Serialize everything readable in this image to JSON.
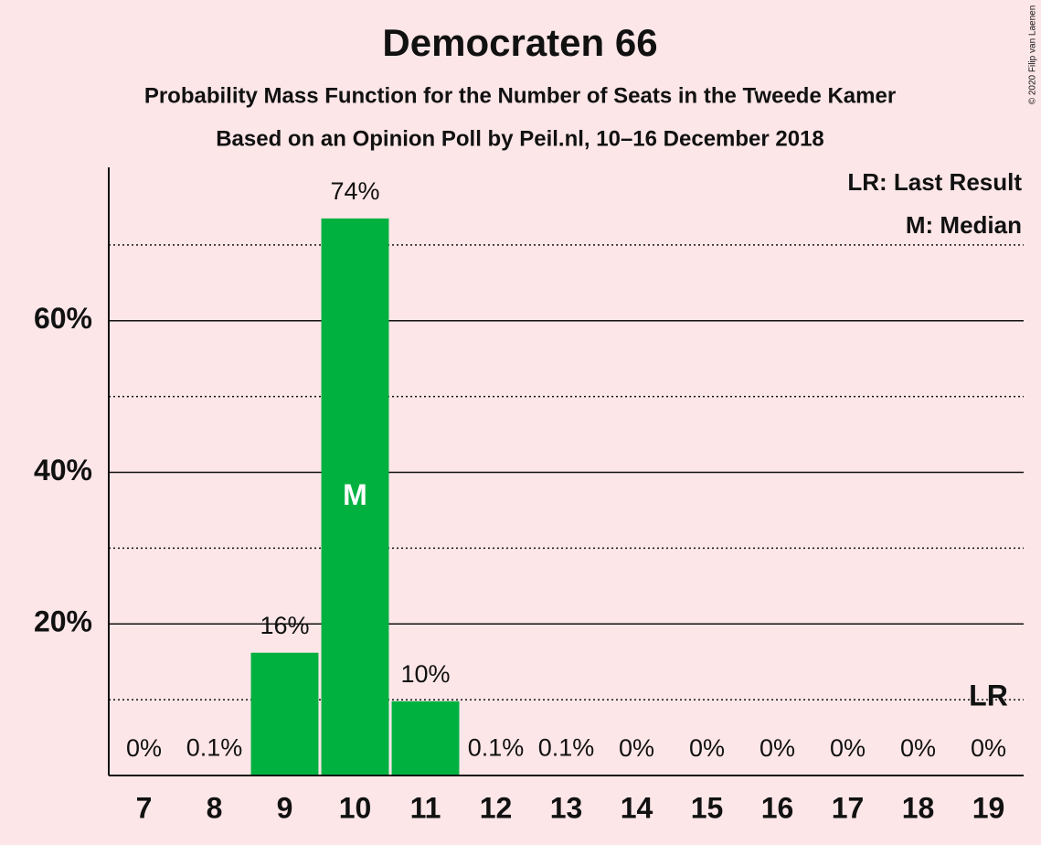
{
  "chart_data": {
    "type": "bar",
    "title": "Democraten 66",
    "subtitle": "Probability Mass Function for the Number of Seats in the Tweede Kamer",
    "subtitle2": "Based on an Opinion Poll by Peil.nl, 10–16 December 2018",
    "copyright": "© 2020 Filip van Laenen",
    "categories": [
      7,
      8,
      9,
      10,
      11,
      12,
      13,
      14,
      15,
      16,
      17,
      18,
      19
    ],
    "values": [
      0,
      0.1,
      16.2,
      73.5,
      9.8,
      0.1,
      0.1,
      0,
      0,
      0,
      0,
      0,
      0
    ],
    "value_labels": [
      "0%",
      "0.1%",
      "16%",
      "74%",
      "10%",
      "0.1%",
      "0.1%",
      "0%",
      "0%",
      "0%",
      "0%",
      "0%",
      "0%"
    ],
    "color": "#00b140",
    "ylim": [
      0,
      80
    ],
    "yticks": [
      {
        "value": 20,
        "label": "20%"
      },
      {
        "value": 40,
        "label": "40%"
      },
      {
        "value": 60,
        "label": "60%"
      }
    ],
    "minor_yticks": [
      10,
      30,
      50,
      70
    ],
    "grid": true,
    "median": 10,
    "median_label": "M",
    "last_result": 19,
    "last_result_label": "LR",
    "legend": [
      "LR: Last Result",
      "M: Median"
    ]
  }
}
